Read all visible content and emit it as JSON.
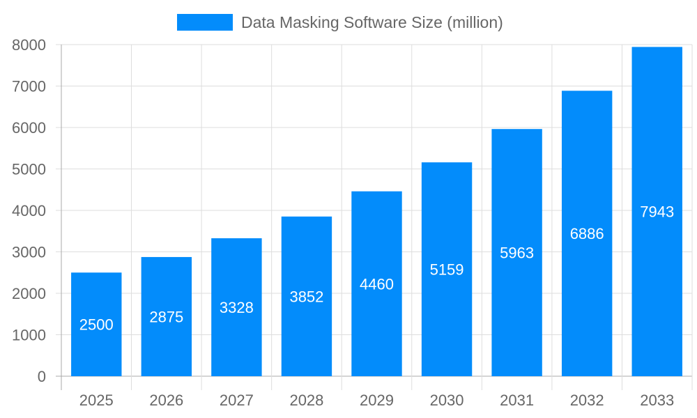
{
  "chart_data": {
    "type": "bar",
    "categories": [
      "2025",
      "2026",
      "2027",
      "2028",
      "2029",
      "2030",
      "2031",
      "2032",
      "2033"
    ],
    "series": [
      {
        "name": "Data Masking Software Size (million)",
        "values": [
          2500,
          2875,
          3328,
          3852,
          4460,
          5159,
          5963,
          6886,
          7943
        ]
      }
    ],
    "ylim": [
      0,
      8000
    ],
    "yticks": [
      0,
      1000,
      2000,
      3000,
      4000,
      5000,
      6000,
      7000,
      8000
    ],
    "grid": true,
    "legend": "top",
    "data_labels": true,
    "colors": {
      "bar": "#038cfb",
      "label": "#ffffff",
      "axis_text": "#666666",
      "grid": "#dddddd"
    }
  }
}
